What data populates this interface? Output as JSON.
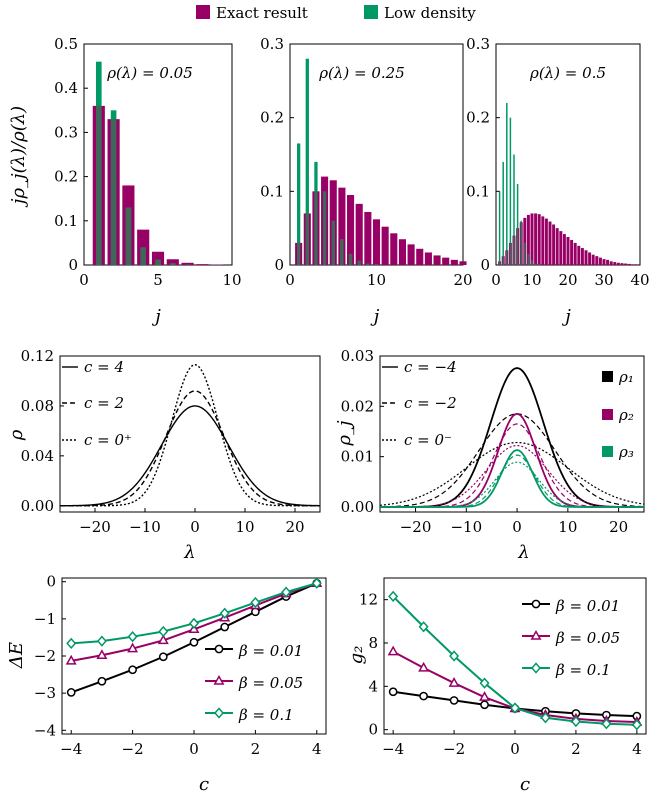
{
  "colors": {
    "purple": "#990066",
    "green": "#009966",
    "overlap": "#555555",
    "black": "#000000"
  },
  "legend": {
    "items": [
      {
        "label": "Exact result",
        "color": "#990066"
      },
      {
        "label": "Low density",
        "color": "#009966"
      }
    ]
  },
  "chart_data": [
    {
      "type": "bar",
      "annotation": "ρ(λ) = 0.05",
      "xlabel": "j",
      "ylabel": "jρ_j(λ)/ρ(λ)",
      "xlim": [
        0,
        10
      ],
      "ylim": [
        0,
        0.5
      ],
      "xticks": [
        "0",
        "5",
        "10"
      ],
      "yticks": [
        "0",
        "0.1",
        "0.2",
        "0.3",
        "0.4",
        "0.5"
      ],
      "x": [
        1,
        2,
        3,
        4,
        5,
        6,
        7,
        8,
        9
      ],
      "series": [
        {
          "name": "Exact result",
          "values": [
            0.36,
            0.33,
            0.18,
            0.08,
            0.03,
            0.013,
            0.005,
            0.002,
            0.001
          ]
        },
        {
          "name": "Low density",
          "values": [
            0.46,
            0.35,
            0.13,
            0.04,
            0.012,
            0.004,
            0.001,
            0.0,
            0.0
          ]
        }
      ]
    },
    {
      "type": "bar",
      "annotation": "ρ(λ) = 0.25",
      "xlabel": "j",
      "ylabel": "",
      "xlim": [
        0,
        20
      ],
      "ylim": [
        0,
        0.3
      ],
      "xticks": [
        "0",
        "10",
        "20"
      ],
      "yticks": [
        "0",
        "0.1",
        "0.2",
        "0.3"
      ],
      "x": [
        1,
        2,
        3,
        4,
        5,
        6,
        7,
        8,
        9,
        10,
        11,
        12,
        13,
        14,
        15,
        16,
        17,
        18,
        19,
        20
      ],
      "series": [
        {
          "name": "Exact result",
          "values": [
            0.03,
            0.07,
            0.1,
            0.12,
            0.115,
            0.105,
            0.095,
            0.083,
            0.072,
            0.062,
            0.052,
            0.043,
            0.035,
            0.028,
            0.022,
            0.017,
            0.013,
            0.01,
            0.007,
            0.005
          ]
        },
        {
          "name": "Low density",
          "values": [
            0.165,
            0.28,
            0.14,
            0.1,
            0.06,
            0.035,
            0.015,
            0.006,
            0.002,
            0.001,
            0,
            0,
            0,
            0,
            0,
            0,
            0,
            0,
            0,
            0
          ]
        }
      ]
    },
    {
      "type": "bar",
      "annotation": "ρ(λ) = 0.5",
      "xlabel": "j",
      "ylabel": "",
      "xlim": [
        0,
        40
      ],
      "ylim": [
        0,
        0.3
      ],
      "xticks": [
        "0",
        "10",
        "20",
        "30",
        "40"
      ],
      "yticks": [
        "0",
        "0.1",
        "0.2",
        "0.3"
      ],
      "x": [
        1,
        2,
        3,
        4,
        5,
        6,
        7,
        8,
        9,
        10,
        11,
        12,
        13,
        14,
        15,
        16,
        17,
        18,
        19,
        20,
        21,
        22,
        23,
        24,
        25,
        26,
        27,
        28,
        29,
        30,
        31,
        32,
        33,
        34,
        35,
        36,
        37,
        38,
        39
      ],
      "series": [
        {
          "name": "Exact result",
          "values": [
            0.005,
            0.012,
            0.02,
            0.03,
            0.04,
            0.05,
            0.058,
            0.064,
            0.068,
            0.07,
            0.07,
            0.069,
            0.066,
            0.063,
            0.059,
            0.055,
            0.05,
            0.046,
            0.042,
            0.038,
            0.034,
            0.03,
            0.026,
            0.023,
            0.02,
            0.017,
            0.014,
            0.012,
            0.01,
            0.008,
            0.007,
            0.005,
            0.004,
            0.003,
            0.0025,
            0.002,
            0.0015,
            0.001,
            0.001
          ]
        },
        {
          "name": "Low density",
          "values": [
            0.1,
            0.14,
            0.22,
            0.2,
            0.15,
            0.11,
            0.06,
            0.03,
            0.015,
            0.006,
            0.002,
            0.001,
            0,
            0,
            0,
            0,
            0,
            0,
            0,
            0,
            0,
            0,
            0,
            0,
            0,
            0,
            0,
            0,
            0,
            0,
            0,
            0,
            0,
            0,
            0,
            0,
            0,
            0,
            0
          ]
        }
      ]
    },
    {
      "type": "line",
      "xlabel": "λ",
      "ylabel": "ρ",
      "xlim": [
        -27,
        25
      ],
      "ylim": [
        -0.005,
        0.12
      ],
      "xticks": [
        "−20",
        "−10",
        "0",
        "10",
        "20"
      ],
      "yticks": [
        "0.00",
        "0.04",
        "0.08",
        "0.12"
      ],
      "annotations": [
        "c = 4",
        "c = 2",
        "c = 0⁺"
      ],
      "series": [
        {
          "name": "c = 4",
          "style": "solid",
          "peak": 0.08,
          "sigma": 6.7
        },
        {
          "name": "c = 2",
          "style": "dashed",
          "peak": 0.092,
          "sigma": 5.8
        },
        {
          "name": "c = 0⁺",
          "style": "dotted",
          "peak": 0.113,
          "sigma": 4.6
        }
      ]
    },
    {
      "type": "line",
      "xlabel": "λ",
      "ylabel": "ρ_j",
      "xlim": [
        -27,
        25
      ],
      "ylim": [
        -0.001,
        0.03
      ],
      "xticks": [
        "−20",
        "−10",
        "0",
        "10",
        "20"
      ],
      "yticks": [
        "0.00",
        "0.01",
        "0.02",
        "0.03"
      ],
      "annotations": [
        "c = −4",
        "c = −2",
        "c = 0⁻"
      ],
      "legend": [
        "ρ₁",
        "ρ₂",
        "ρ₃"
      ],
      "series": [
        {
          "name": "ρ₁",
          "color": "#000000",
          "curves": [
            {
              "style": "solid",
              "peak": 0.0276,
              "sigma": 5.2
            },
            {
              "style": "dashed",
              "peak": 0.0185,
              "sigma": 7.5
            },
            {
              "style": "dotted",
              "peak": 0.0128,
              "sigma": 10
            }
          ]
        },
        {
          "name": "ρ₂",
          "color": "#990066",
          "curves": [
            {
              "style": "solid",
              "peak": 0.0185,
              "sigma": 3.7
            },
            {
              "style": "dashed",
              "peak": 0.0165,
              "sigma": 4.6
            },
            {
              "style": "dotted",
              "peak": 0.0122,
              "sigma": 6.0
            }
          ]
        },
        {
          "name": "ρ₃",
          "color": "#009966",
          "curves": [
            {
              "style": "solid",
              "peak": 0.0113,
              "sigma": 3.0
            },
            {
              "style": "dashed",
              "peak": 0.0103,
              "sigma": 3.5
            },
            {
              "style": "dotted",
              "peak": 0.0089,
              "sigma": 4.3
            }
          ]
        }
      ]
    },
    {
      "type": "line",
      "xlabel": "c",
      "ylabel": "ΔE",
      "xlim": [
        -4.3,
        4.3
      ],
      "ylim": [
        -4.1,
        0.1
      ],
      "xticks": [
        "−4",
        "−2",
        "0",
        "2",
        "4"
      ],
      "yticks": [
        "0",
        "−1",
        "−2",
        "−3",
        "−4"
      ],
      "x": [
        -4,
        -3,
        -2,
        -1,
        0,
        1,
        2,
        3,
        4
      ],
      "series": [
        {
          "name": "β = 0.01",
          "color": "#000000",
          "marker": "circle",
          "values": [
            -2.98,
            -2.68,
            -2.37,
            -2.02,
            -1.63,
            -1.22,
            -0.81,
            -0.4,
            -0.04
          ]
        },
        {
          "name": "β = 0.05",
          "color": "#990066",
          "marker": "triangle",
          "values": [
            -2.13,
            -1.98,
            -1.8,
            -1.58,
            -1.28,
            -0.97,
            -0.64,
            -0.32,
            -0.04
          ]
        },
        {
          "name": "β = 0.1",
          "color": "#009966",
          "marker": "diamond",
          "values": [
            -1.66,
            -1.6,
            -1.48,
            -1.34,
            -1.12,
            -0.85,
            -0.56,
            -0.28,
            -0.04
          ]
        }
      ]
    },
    {
      "type": "line",
      "xlabel": "c",
      "ylabel": "g₂",
      "xlim": [
        -4.3,
        4.3
      ],
      "ylim": [
        -0.4,
        14
      ],
      "xticks": [
        "−4",
        "−2",
        "0",
        "2",
        "4"
      ],
      "yticks": [
        "0",
        "4",
        "8",
        "12"
      ],
      "x": [
        -4,
        -3,
        -2,
        -1,
        0,
        1,
        2,
        3,
        4
      ],
      "series": [
        {
          "name": "β = 0.01",
          "color": "#000000",
          "marker": "circle",
          "values": [
            3.5,
            3.1,
            2.7,
            2.3,
            1.95,
            1.7,
            1.5,
            1.35,
            1.25
          ]
        },
        {
          "name": "β = 0.05",
          "color": "#990066",
          "marker": "triangle",
          "values": [
            7.2,
            5.7,
            4.3,
            3.0,
            1.95,
            1.35,
            1.0,
            0.8,
            0.7
          ]
        },
        {
          "name": "β = 0.1",
          "color": "#009966",
          "marker": "diamond",
          "values": [
            12.3,
            9.5,
            6.8,
            4.3,
            2.0,
            1.1,
            0.75,
            0.55,
            0.45
          ]
        }
      ]
    }
  ]
}
